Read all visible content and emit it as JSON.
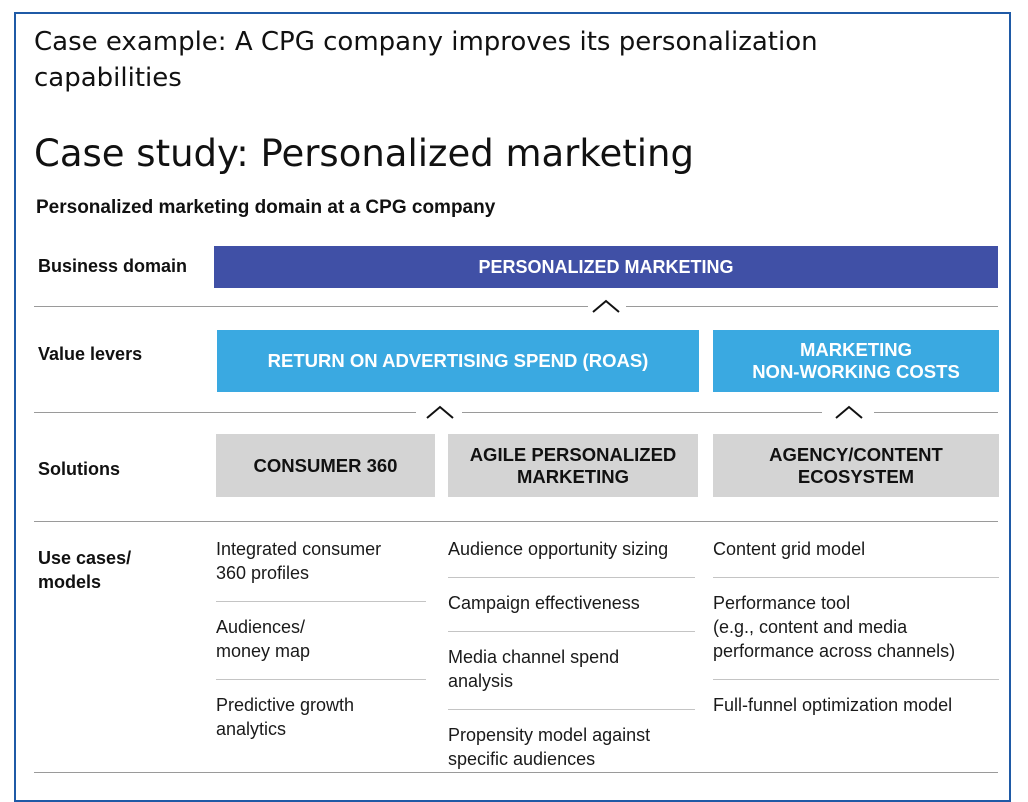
{
  "header": {
    "title": "Case example: A CPG company improves its personalization capabilities"
  },
  "case_study": {
    "title": "Case study: Personalized marketing",
    "subtitle": "Personalized marketing domain at a CPG company"
  },
  "rows": {
    "business_domain": "Business domain",
    "value_levers": "Value levers",
    "solutions": "Solutions",
    "use_cases": "Use cases/\nmodels"
  },
  "business_domain": {
    "label": "PERSONALIZED MARKETING"
  },
  "value_levers": [
    {
      "label": "RETURN ON ADVERTISING SPEND (ROAS)"
    },
    {
      "label": "MARKETING\nNON-WORKING COSTS"
    }
  ],
  "solutions": [
    {
      "label": "CONSUMER 360"
    },
    {
      "label": "AGILE PERSONALIZED\nMARKETING"
    },
    {
      "label": "AGENCY/CONTENT\nECOSYSTEM"
    }
  ],
  "use_cases": [
    [
      "Integrated consumer\n360 profiles",
      "Audiences/\nmoney map",
      "Predictive growth\nanalytics"
    ],
    [
      "Audience opportunity sizing",
      "Campaign effectiveness",
      "Media channel spend\nanalysis",
      "Propensity model against\nspecific audiences"
    ],
    [
      "Content grid model",
      "Performance tool\n(e.g., content and media\nperformance across channels)",
      "Full-funnel optimization model"
    ]
  ],
  "colors": {
    "frame": "#1f5aa6",
    "business_domain_fill": "#4050a6",
    "value_lever_fill": "#3aa9e1",
    "solution_fill": "#d4d4d4"
  }
}
